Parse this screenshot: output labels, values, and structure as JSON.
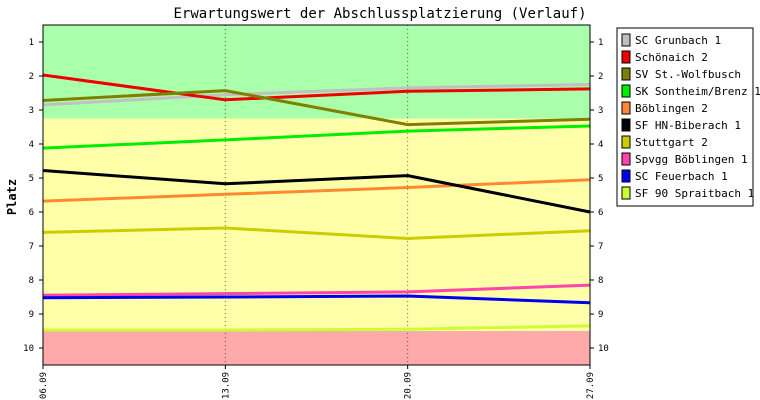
{
  "chart_data": {
    "type": "line",
    "title": "Erwartungswert der Abschlussplatzierung (Verlauf)",
    "xlabel": "",
    "ylabel": "Platz",
    "categories": [
      "06.09",
      "13.09",
      "20.09",
      "27.09"
    ],
    "y_ticks": [
      "1",
      "2",
      "3",
      "4",
      "5",
      "6",
      "7",
      "8",
      "9",
      "10"
    ],
    "ylim": [
      0.5,
      10.5
    ],
    "y_inverted": true,
    "zones": [
      {
        "from": 0.5,
        "to": 3.25,
        "color": "#aaffaa"
      },
      {
        "from": 3.25,
        "to": 9.5,
        "color": "#ffffaa"
      },
      {
        "from": 9.5,
        "to": 10.5,
        "color": "#ffaaaa"
      }
    ],
    "legend_position": "right",
    "series": [
      {
        "name": "SC Grunbach 1",
        "color": "#c0c0c0",
        "values": [
          2.85,
          2.55,
          2.35,
          2.25
        ]
      },
      {
        "name": "Schönaich 2",
        "color": "#ee0000",
        "values": [
          1.97,
          2.7,
          2.45,
          2.38
        ]
      },
      {
        "name": "SV St.-Wolfbusch",
        "color": "#808000",
        "values": [
          2.72,
          2.43,
          3.43,
          3.27
        ]
      },
      {
        "name": "SK Sontheim/Brenz 1",
        "color": "#00ee00",
        "values": [
          4.12,
          3.88,
          3.62,
          3.47
        ]
      },
      {
        "name": "Böblingen 2",
        "color": "#ff8833",
        "values": [
          5.68,
          5.48,
          5.28,
          5.05
        ]
      },
      {
        "name": "SF HN-Biberach 1",
        "color": "#000000",
        "values": [
          4.78,
          5.17,
          4.93,
          6.0
        ]
      },
      {
        "name": "Stuttgart 2",
        "color": "#cccc00",
        "values": [
          6.6,
          6.47,
          6.78,
          6.55
        ]
      },
      {
        "name": "Spvgg Böblingen 1",
        "color": "#ff44aa",
        "values": [
          8.45,
          8.4,
          8.35,
          8.15
        ]
      },
      {
        "name": "SC Feuerbach 1",
        "color": "#0000ee",
        "values": [
          8.52,
          8.5,
          8.47,
          8.67
        ]
      },
      {
        "name": "SF 90 Spraitbach 1",
        "color": "#ccff33",
        "values": [
          9.47,
          9.47,
          9.45,
          9.35
        ]
      }
    ]
  }
}
